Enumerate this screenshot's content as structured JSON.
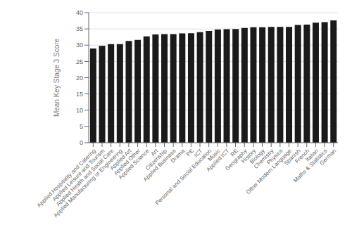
{
  "chart_data": {
    "type": "bar",
    "ylabel": "Mean Key Stage 3 Score",
    "categories": [
      "Applied Hospitality and Catering",
      "Applied Leisure and Tourism",
      "Applied Health and Social Care",
      "Applied Manufacturing or Engineering",
      "Applied Art",
      "Applied Other",
      "Applied Science",
      "Art",
      "Citizenship",
      "Applied Business",
      "Drama",
      "PE",
      "ICT",
      "Personal and Social Education",
      "Music",
      "Applied ICT",
      "RE",
      "Geography",
      "History",
      "Biology",
      "Chemistry",
      "Physics",
      "Other Modern Language",
      "Spanish",
      "French",
      "Italian",
      "Maths & Statistics",
      "German"
    ],
    "values": [
      29.0,
      29.8,
      30.3,
      30.3,
      31.3,
      31.6,
      32.7,
      33.3,
      33.4,
      33.4,
      33.6,
      33.7,
      34.0,
      34.4,
      34.8,
      34.9,
      35.0,
      35.3,
      35.5,
      35.5,
      35.6,
      35.6,
      35.6,
      36.2,
      36.3,
      36.9,
      37.1,
      37.6
    ],
    "color": "#1a1a1a",
    "ylim": [
      0,
      40
    ],
    "yticks": [
      0,
      5,
      10,
      15,
      20,
      25,
      30,
      35,
      40
    ],
    "grid": true
  }
}
